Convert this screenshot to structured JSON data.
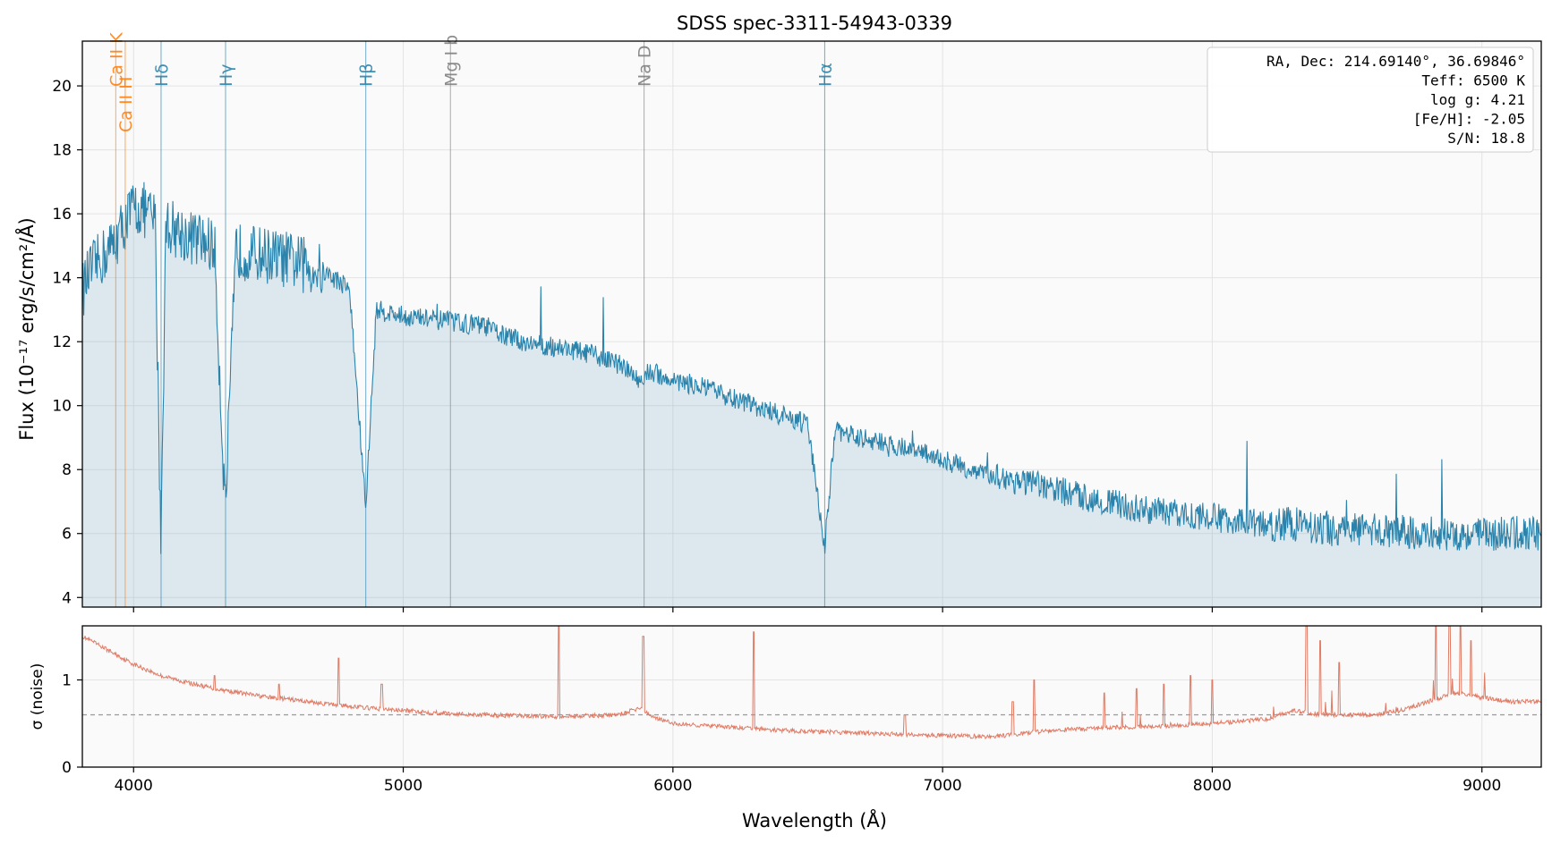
{
  "chart_data": [
    {
      "type": "line",
      "title": "SDSS spec-3311-54943-0339",
      "ylabel": "Flux (10⁻¹⁷ erg/s/cm²/Å)",
      "xlim": [
        3810,
        9220
      ],
      "ylim": [
        3.7,
        21.4
      ],
      "x_ticks": [
        4000,
        5000,
        6000,
        7000,
        8000,
        9000
      ],
      "y_ticks": [
        4,
        6,
        8,
        10,
        12,
        14,
        16,
        18,
        20
      ],
      "grid": true,
      "fill_under": true,
      "series": [
        {
          "color": "#2b83ab",
          "x": [
            3810,
            3840,
            3880,
            3920,
            3960,
            4000,
            4040,
            4080,
            4101,
            4120,
            4160,
            4200,
            4300,
            4340,
            4380,
            4400,
            4500,
            4600,
            4700,
            4800,
            4861,
            4900,
            5000,
            5100,
            5200,
            5300,
            5400,
            5500,
            5600,
            5700,
            5800,
            5890,
            5900,
            6000,
            6100,
            6200,
            6300,
            6400,
            6500,
            6563,
            6600,
            6700,
            6800,
            6900,
            7000,
            7100,
            7200,
            7300,
            7400,
            7500,
            7600,
            7700,
            7800,
            7900,
            8000,
            8100,
            8200,
            8300,
            8400,
            8500,
            8600,
            8700,
            8800,
            8900,
            9000,
            9100,
            9220
          ],
          "y": [
            13.6,
            14.2,
            14.6,
            15.0,
            15.6,
            16.2,
            16.1,
            15.8,
            5.8,
            15.7,
            15.5,
            15.3,
            15.0,
            6.7,
            14.9,
            14.8,
            14.7,
            14.5,
            14.2,
            13.7,
            6.8,
            13.0,
            12.8,
            12.7,
            12.6,
            12.5,
            12.1,
            11.9,
            11.8,
            11.6,
            11.3,
            10.7,
            11.1,
            10.8,
            10.6,
            10.3,
            10.0,
            9.7,
            9.4,
            5.6,
            9.2,
            9.0,
            8.8,
            8.6,
            8.3,
            8.0,
            7.8,
            7.6,
            7.4,
            7.2,
            7.0,
            6.8,
            6.7,
            6.6,
            6.5,
            6.4,
            6.3,
            6.3,
            6.2,
            6.1,
            6.1,
            6.1,
            6.0,
            6.0,
            6.0,
            6.0,
            6.0
          ]
        }
      ],
      "lines": [
        {
          "label": "Ca II K",
          "wavelength": 3934,
          "color": "#ff7f0e"
        },
        {
          "label": "Ca II H",
          "wavelength": 3969,
          "color": "#ff7f0e"
        },
        {
          "label": "Hδ",
          "wavelength": 4102,
          "color": "#2b83ab"
        },
        {
          "label": "Hγ",
          "wavelength": 4341,
          "color": "#2b83ab"
        },
        {
          "label": "Hβ",
          "wavelength": 4861,
          "color": "#2b83ab"
        },
        {
          "label": "Mg I b",
          "wavelength": 5175,
          "color": "#7f7f7f"
        },
        {
          "label": "Na D",
          "wavelength": 5893,
          "color": "#7f7f7f"
        },
        {
          "label": "Hα",
          "wavelength": 6563,
          "color": "#2b83ab"
        }
      ],
      "annotation": [
        "RA, Dec: 214.69140°, 36.69846°",
        "Teff: 6500 K",
        "log g: 4.21",
        "[Fe/H]: -2.05",
        "S/N: 18.8"
      ]
    },
    {
      "type": "line",
      "ylabel": "σ (noise)",
      "xlabel": "Wavelength (Å)",
      "xlim": [
        3810,
        9220
      ],
      "ylim": [
        0,
        1.62
      ],
      "x_ticks": [
        4000,
        5000,
        6000,
        7000,
        8000,
        9000
      ],
      "y_ticks": [
        0,
        1
      ],
      "grid": true,
      "reference_line": 0.6,
      "series": [
        {
          "color": "#e07b65",
          "x": [
            3810,
            3900,
            4000,
            4100,
            4200,
            4300,
            4400,
            4500,
            4600,
            4700,
            4800,
            4900,
            5000,
            5200,
            5400,
            5600,
            5800,
            5880,
            5900,
            5950,
            6000,
            6200,
            6400,
            6600,
            6800,
            7000,
            7200,
            7400,
            7600,
            7800,
            8000,
            8200,
            8300,
            8400,
            8600,
            8700,
            8800,
            8900,
            9000,
            9100,
            9220
          ],
          "y": [
            1.5,
            1.35,
            1.18,
            1.05,
            0.97,
            0.9,
            0.85,
            0.8,
            0.77,
            0.73,
            0.7,
            0.67,
            0.65,
            0.61,
            0.59,
            0.58,
            0.6,
            0.68,
            0.62,
            0.55,
            0.5,
            0.46,
            0.42,
            0.4,
            0.38,
            0.36,
            0.35,
            0.42,
            0.45,
            0.47,
            0.5,
            0.55,
            0.65,
            0.6,
            0.6,
            0.65,
            0.75,
            0.85,
            0.8,
            0.75,
            0.75
          ]
        }
      ],
      "spikes": [
        {
          "x": 4300,
          "y": 1.05
        },
        {
          "x": 4540,
          "y": 0.95
        },
        {
          "x": 4760,
          "y": 1.25
        },
        {
          "x": 4920,
          "y": 0.95
        },
        {
          "x": 5577,
          "y": 1.62
        },
        {
          "x": 5890,
          "y": 1.5
        },
        {
          "x": 6300,
          "y": 1.55
        },
        {
          "x": 6860,
          "y": 0.6
        },
        {
          "x": 7260,
          "y": 0.75
        },
        {
          "x": 7340,
          "y": 1.0
        },
        {
          "x": 7600,
          "y": 0.85
        },
        {
          "x": 7720,
          "y": 0.9
        },
        {
          "x": 7820,
          "y": 0.95
        },
        {
          "x": 7920,
          "y": 1.05
        },
        {
          "x": 8000,
          "y": 1.0
        },
        {
          "x": 8350,
          "y": 1.62
        },
        {
          "x": 8400,
          "y": 1.45
        },
        {
          "x": 8470,
          "y": 1.2
        },
        {
          "x": 8830,
          "y": 1.62
        },
        {
          "x": 8880,
          "y": 1.62
        },
        {
          "x": 8920,
          "y": 1.62
        },
        {
          "x": 8960,
          "y": 1.45
        }
      ]
    }
  ]
}
